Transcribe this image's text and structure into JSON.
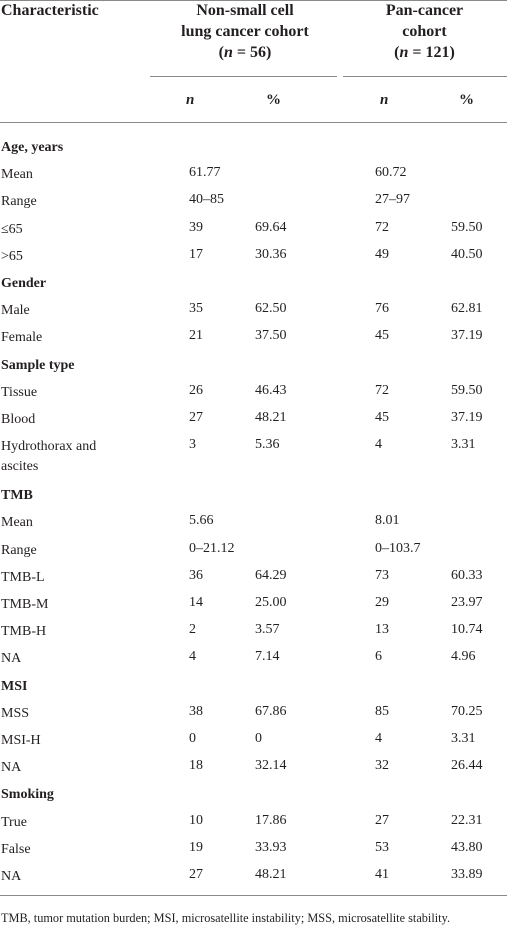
{
  "header": {
    "characteristic": "Characteristic",
    "nsclc_line1": "Non-small cell",
    "nsclc_line2": "lung cancer cohort",
    "nsclc_n": "(n = 56)",
    "pan_line1": "Pan-cancer",
    "pan_line2": "cohort",
    "pan_n": "(n = 121)",
    "col_n": "n",
    "col_pct": "%"
  },
  "rows": [
    {
      "label": "Age, years",
      "section": true
    },
    {
      "label": "Mean",
      "v1": "61.77",
      "v3": "60.72"
    },
    {
      "label": "Range",
      "v1": "40–85",
      "v3": "27–97"
    },
    {
      "label": "≤65",
      "v1": "39",
      "v2": "69.64",
      "v3": "72",
      "v4": "59.50"
    },
    {
      "label": ">65",
      "v1": "17",
      "v2": "30.36",
      "v3": "49",
      "v4": "40.50"
    },
    {
      "label": "Gender",
      "section": true
    },
    {
      "label": "Male",
      "v1": "35",
      "v2": "62.50",
      "v3": "76",
      "v4": "62.81"
    },
    {
      "label": "Female",
      "v1": "21",
      "v2": "37.50",
      "v3": "45",
      "v4": "37.19"
    },
    {
      "label": "Sample type",
      "section": true
    },
    {
      "label": "Tissue",
      "v1": "26",
      "v2": "46.43",
      "v3": "72",
      "v4": "59.50"
    },
    {
      "label": "Blood",
      "v1": "27",
      "v2": "48.21",
      "v3": "45",
      "v4": "37.19"
    },
    {
      "label": "Hydrothorax and",
      "label2": "ascites",
      "v1": "3",
      "v2": "5.36",
      "v3": "4",
      "v4": "3.31"
    },
    {
      "label": "TMB",
      "section": true
    },
    {
      "label": "Mean",
      "v1": "5.66",
      "v3": "8.01"
    },
    {
      "label": "Range",
      "v1": "0–21.12",
      "v3": "0–103.7"
    },
    {
      "label": "TMB-L",
      "v1": "36",
      "v2": "64.29",
      "v3": "73",
      "v4": "60.33"
    },
    {
      "label": "TMB-M",
      "v1": "14",
      "v2": "25.00",
      "v3": "29",
      "v4": "23.97"
    },
    {
      "label": "TMB-H",
      "v1": "2",
      "v2": "3.57",
      "v3": "13",
      "v4": "10.74"
    },
    {
      "label": "NA",
      "v1": "4",
      "v2": "7.14",
      "v3": "6",
      "v4": "4.96"
    },
    {
      "label": "MSI",
      "section": true
    },
    {
      "label": "MSS",
      "v1": "38",
      "v2": "67.86",
      "v3": "85",
      "v4": "70.25"
    },
    {
      "label": "MSI-H",
      "v1": "0",
      "v2": "0",
      "v3": "4",
      "v4": "3.31"
    },
    {
      "label": "NA",
      "v1": "18",
      "v2": "32.14",
      "v3": "32",
      "v4": "26.44"
    },
    {
      "label": "Smoking",
      "section": true
    },
    {
      "label": "True",
      "v1": "10",
      "v2": "17.86",
      "v3": "27",
      "v4": "22.31"
    },
    {
      "label": "False",
      "v1": "19",
      "v2": "33.93",
      "v3": "53",
      "v4": "43.80"
    },
    {
      "label": "NA",
      "v1": "27",
      "v2": "48.21",
      "v3": "41",
      "v4": "33.89"
    }
  ],
  "footnote": "TMB, tumor mutation burden; MSI, microsatellite instability; MSS, microsatellite stability."
}
